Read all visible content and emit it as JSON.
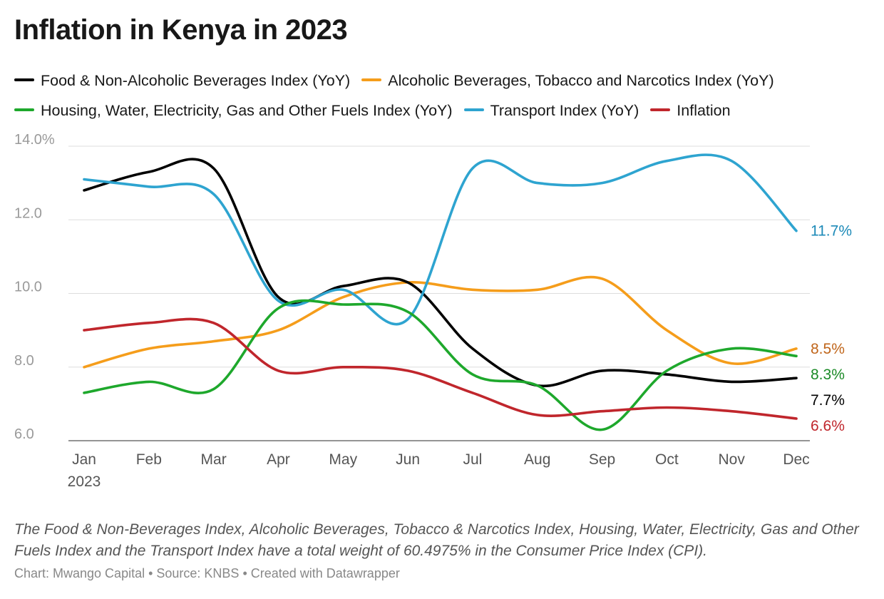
{
  "chart_data": {
    "type": "line",
    "title": "Inflation in Kenya in 2023",
    "x": [
      "Jan",
      "Feb",
      "Mar",
      "Apr",
      "May",
      "Jun",
      "Jul",
      "Aug",
      "Sep",
      "Oct",
      "Nov",
      "Dec"
    ],
    "x_sublabel": "2023",
    "ylim": [
      6,
      14
    ],
    "y_ticks": [
      "6.0",
      "8.0",
      "10.0",
      "12.0",
      "14.0%"
    ],
    "y_tick_values": [
      6,
      8,
      10,
      12,
      14
    ],
    "grid": true,
    "legend": "top",
    "series": [
      {
        "name": "Food & Non-Alcoholic Beverages Index (YoY)",
        "color": "#000000",
        "values": [
          12.8,
          13.3,
          13.4,
          9.9,
          10.2,
          10.3,
          8.5,
          7.5,
          7.9,
          7.8,
          7.6,
          7.7
        ],
        "end_label": "7.7%",
        "label_color": "#000000"
      },
      {
        "name": "Alcoholic Beverages, Tobacco and Narcotics Index (YoY)",
        "color": "#f59d1b",
        "values": [
          8.0,
          8.5,
          8.7,
          9.0,
          9.9,
          10.3,
          10.1,
          10.1,
          10.4,
          9.0,
          8.1,
          8.5
        ],
        "end_label": "8.5%",
        "label_color": "#c0651a"
      },
      {
        "name": "Housing, Water, Electricity, Gas and Other Fuels Index (YoY)",
        "color": "#1ea82c",
        "values": [
          7.3,
          7.6,
          7.4,
          9.6,
          9.7,
          9.5,
          7.8,
          7.5,
          6.3,
          7.9,
          8.5,
          8.3
        ],
        "end_label": "8.3%",
        "label_color": "#1a8a26"
      },
      {
        "name": "Transport Index (YoY)",
        "color": "#2ea4d0",
        "values": [
          13.1,
          12.9,
          12.7,
          9.8,
          10.1,
          9.3,
          13.4,
          13.0,
          13.0,
          13.6,
          13.6,
          11.7
        ],
        "end_label": "11.7%",
        "label_color": "#1d8ab8"
      },
      {
        "name": "Inflation",
        "color": "#c0262c",
        "values": [
          9.0,
          9.2,
          9.2,
          7.9,
          8.0,
          7.9,
          7.3,
          6.7,
          6.8,
          6.9,
          6.8,
          6.6
        ],
        "end_label": "6.6%",
        "label_color": "#c0262c"
      }
    ],
    "note": "The Food & Non-Beverages Index, Alcoholic Beverages, Tobacco & Narcotics Index, Housing, Water, Electricity, Gas and Other Fuels Index and the Transport Index have a total weight of 60.4975% in the Consumer Price Index (CPI).",
    "credit": "Chart: Mwango Capital • Source: KNBS • Created with Datawrapper"
  }
}
